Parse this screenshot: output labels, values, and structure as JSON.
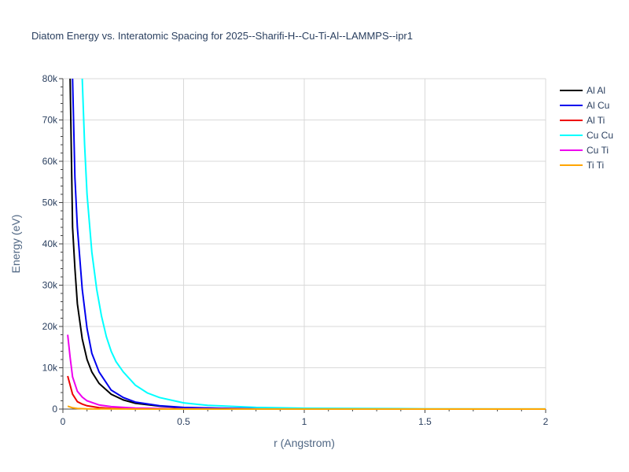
{
  "chart_data": {
    "type": "line",
    "title": "Diatom Energy vs. Interatomic Spacing for 2025--Sharifi-H--Cu-Ti-Al--LAMMPS--ipr1",
    "xlabel": "r (Angstrom)",
    "ylabel": "Energy (eV)",
    "xlim": [
      0,
      2
    ],
    "ylim": [
      0,
      80000
    ],
    "x_ticks": [
      0,
      0.5,
      1,
      1.5,
      2
    ],
    "x_tick_labels": [
      "0",
      "0.5",
      "1",
      "1.5",
      "2"
    ],
    "y_ticks": [
      0,
      10000,
      20000,
      30000,
      40000,
      50000,
      60000,
      70000,
      80000
    ],
    "y_tick_labels": [
      "0",
      "10k",
      "20k",
      "30k",
      "40k",
      "50k",
      "60k",
      "70k",
      "80k"
    ],
    "grid": true,
    "legend_position": "top-right",
    "series": [
      {
        "name": "Al Al",
        "color": "#000000",
        "x": [
          0.03,
          0.04,
          0.05,
          0.06,
          0.08,
          0.1,
          0.12,
          0.15,
          0.2,
          0.25,
          0.3,
          0.4,
          0.5,
          0.7,
          1.0,
          1.5,
          2.0
        ],
        "y": [
          80000,
          44000,
          34000,
          25500,
          17000,
          12000,
          9000,
          6200,
          3600,
          2200,
          1400,
          700,
          350,
          120,
          30,
          5,
          0
        ]
      },
      {
        "name": "Al Cu",
        "color": "#0000ee",
        "x": [
          0.04,
          0.05,
          0.06,
          0.08,
          0.1,
          0.12,
          0.15,
          0.2,
          0.25,
          0.3,
          0.4,
          0.5,
          0.7,
          1.0,
          1.5,
          2.0
        ],
        "y": [
          80000,
          56000,
          44000,
          29000,
          19500,
          13500,
          9000,
          4600,
          2800,
          1700,
          800,
          400,
          130,
          30,
          5,
          0
        ]
      },
      {
        "name": "Al Ti",
        "color": "#ee0000",
        "x": [
          0.02,
          0.04,
          0.06,
          0.08,
          0.1,
          0.15,
          0.2,
          0.3,
          0.5,
          1.0,
          2.0
        ],
        "y": [
          8000,
          3600,
          1800,
          1200,
          800,
          350,
          180,
          60,
          15,
          2,
          0
        ]
      },
      {
        "name": "Cu Cu",
        "color": "#00ffff",
        "x": [
          0.08,
          0.09,
          0.1,
          0.12,
          0.14,
          0.16,
          0.18,
          0.2,
          0.22,
          0.25,
          0.3,
          0.35,
          0.4,
          0.5,
          0.6,
          0.8,
          1.0,
          1.5,
          2.0
        ],
        "y": [
          80000,
          64000,
          52000,
          38000,
          29000,
          22500,
          17500,
          14000,
          11500,
          9000,
          5800,
          3900,
          2800,
          1500,
          900,
          400,
          200,
          50,
          10
        ]
      },
      {
        "name": "Cu Ti",
        "color": "#ee00ee",
        "x": [
          0.02,
          0.03,
          0.04,
          0.06,
          0.08,
          0.1,
          0.15,
          0.2,
          0.3,
          0.5,
          1.0,
          2.0
        ],
        "y": [
          18000,
          12500,
          7800,
          4300,
          2900,
          2000,
          1000,
          600,
          250,
          60,
          8,
          0
        ]
      },
      {
        "name": "Ti Ti",
        "color": "#ffa500",
        "x": [
          0.02,
          0.04,
          0.06,
          0.1,
          0.2,
          0.5,
          1.0,
          2.0
        ],
        "y": [
          700,
          300,
          150,
          60,
          15,
          3,
          0,
          0
        ]
      }
    ]
  }
}
